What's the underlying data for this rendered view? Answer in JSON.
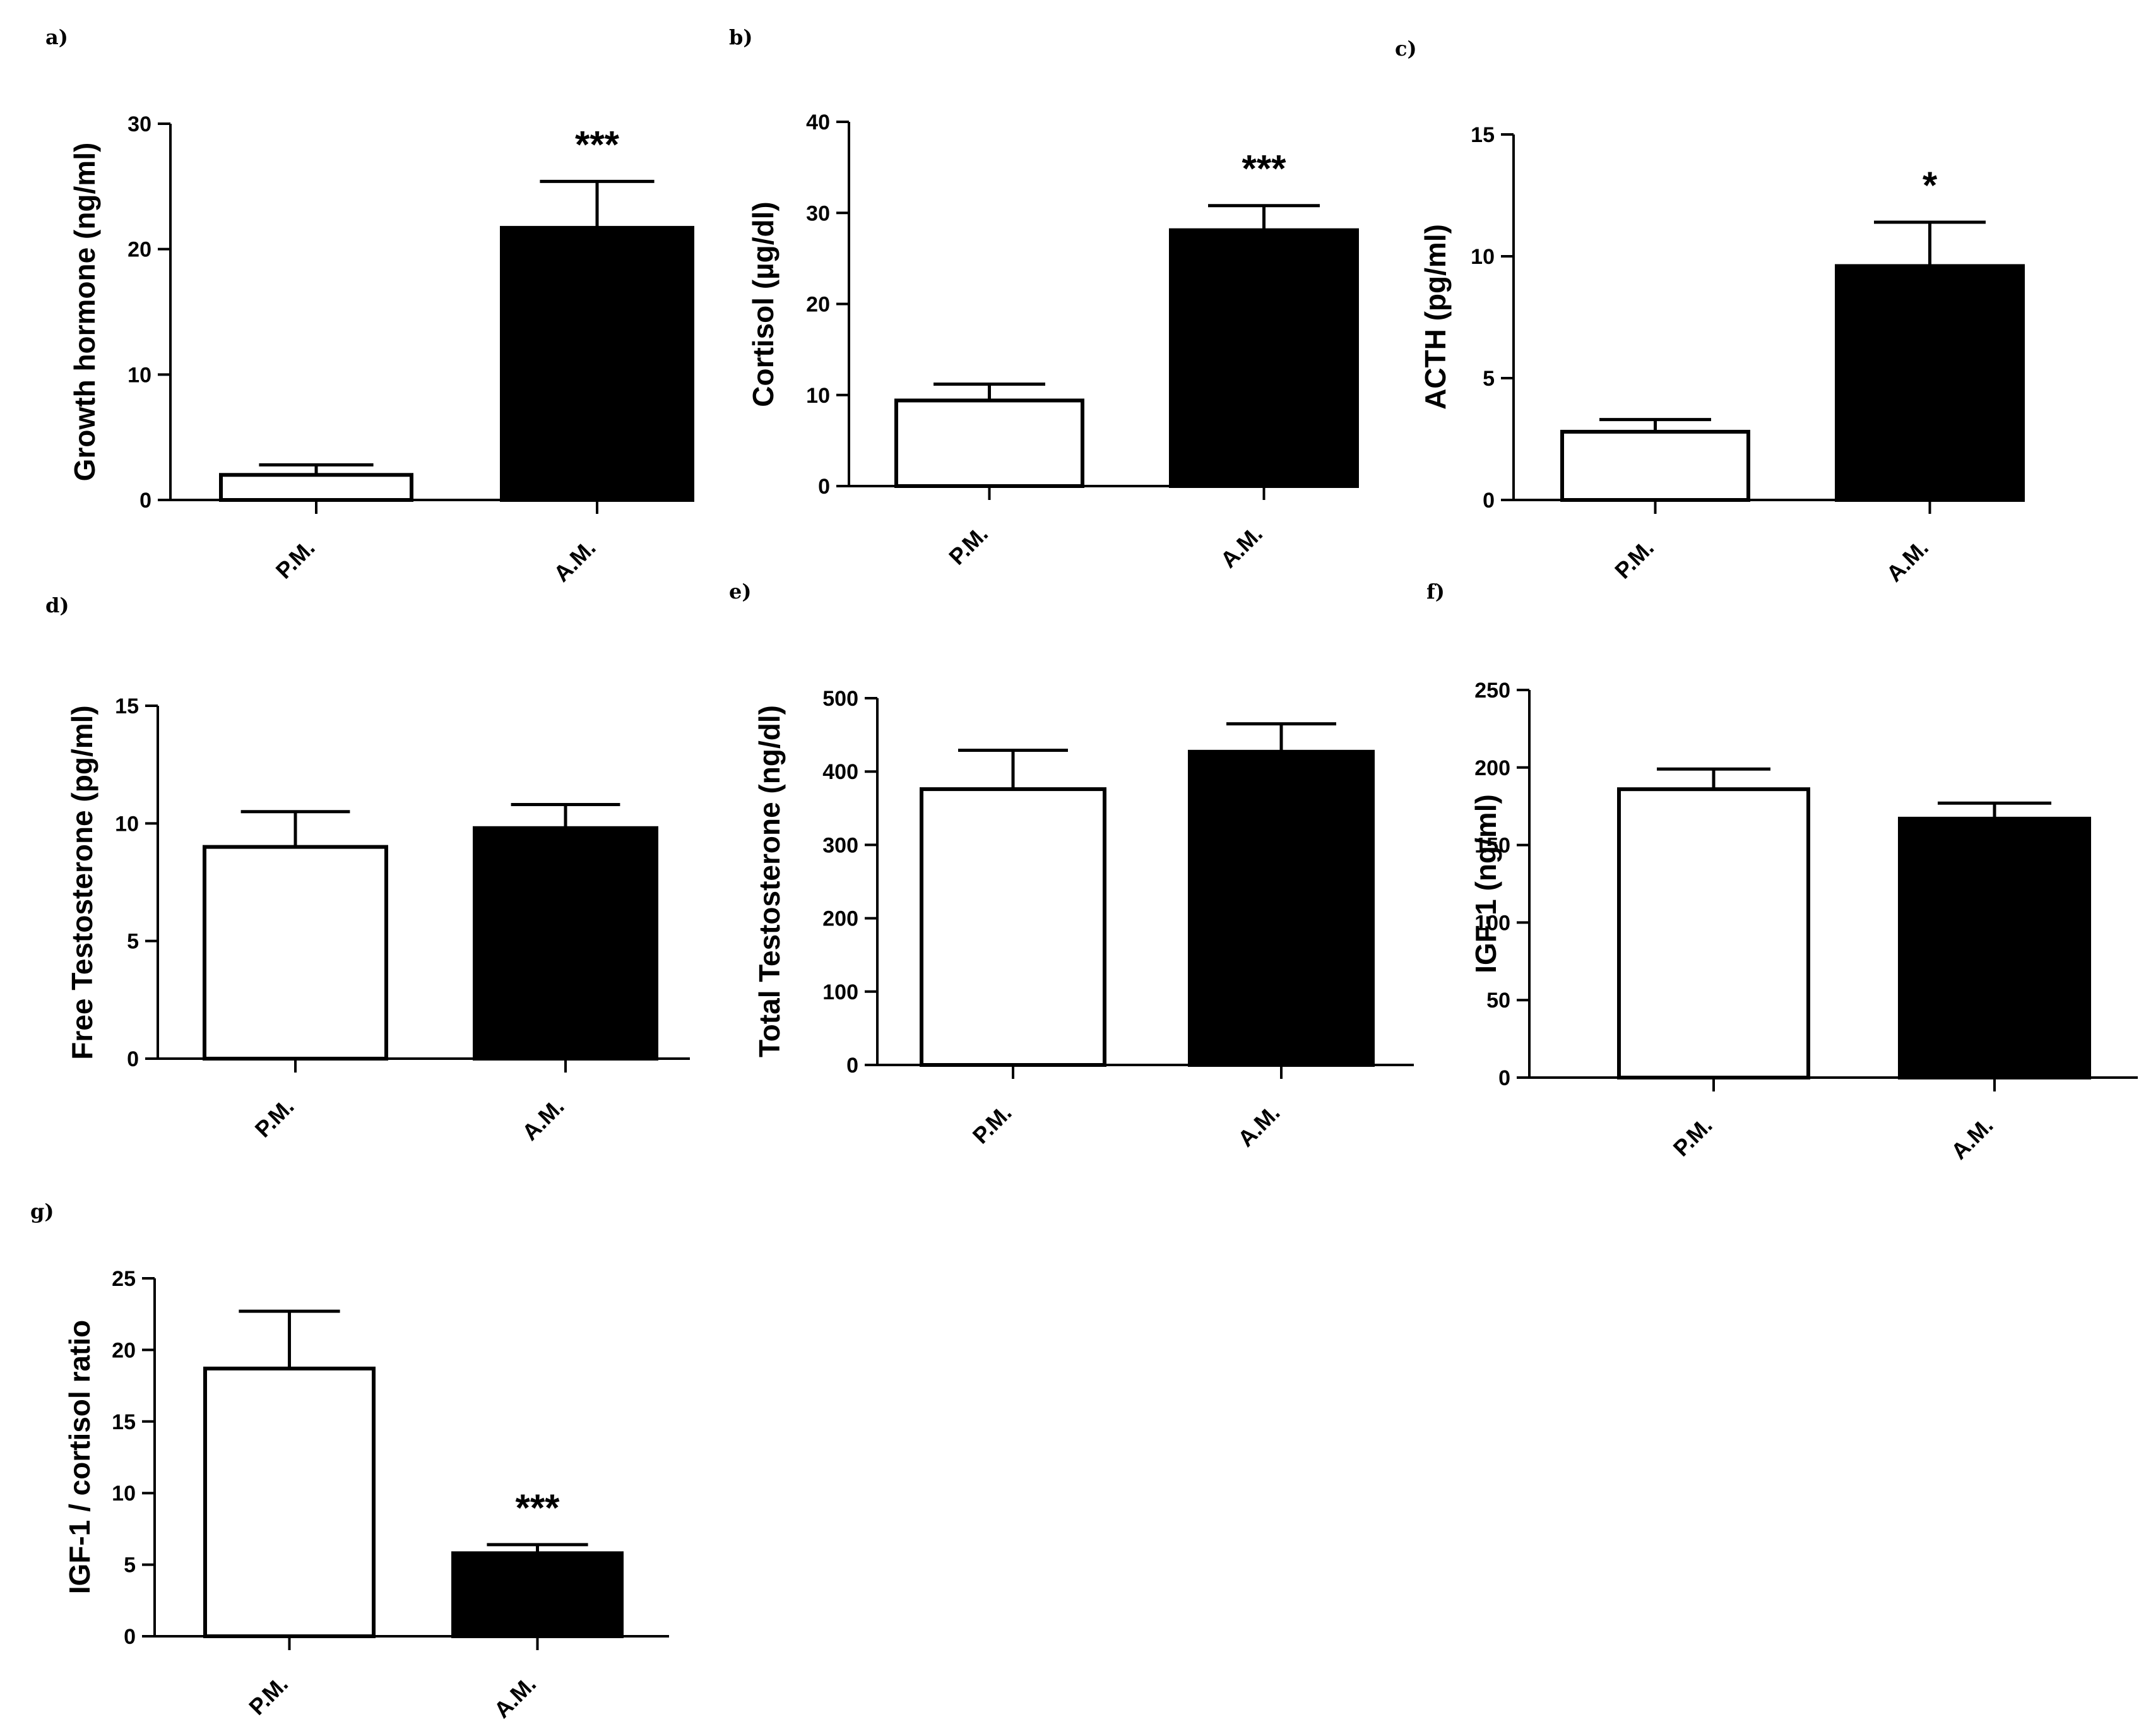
{
  "chart_data": [
    {
      "panel": "a)",
      "type": "bar",
      "categories": [
        "P.M.",
        "A.M."
      ],
      "values": [
        2,
        21.7
      ],
      "errors": [
        0.8,
        3.7
      ],
      "fills": [
        "#ffffff",
        "#000000"
      ],
      "significance": [
        "",
        "***"
      ],
      "ylabel": "Growth hormone (ng/ml)",
      "ylim": [
        0,
        30
      ],
      "yticks": [
        0,
        10,
        20,
        30
      ]
    },
    {
      "panel": "b)",
      "type": "bar",
      "categories": [
        "P.M.",
        "A.M."
      ],
      "values": [
        9.4,
        28.1
      ],
      "errors": [
        1.8,
        2.7
      ],
      "fills": [
        "#ffffff",
        "#000000"
      ],
      "significance": [
        "",
        "***"
      ],
      "ylabel": "Cortisol (µg/dl)",
      "ylim": [
        0,
        40
      ],
      "yticks": [
        0,
        10,
        20,
        30,
        40
      ]
    },
    {
      "panel": "c)",
      "type": "bar",
      "categories": [
        "P.M.",
        "A.M."
      ],
      "values": [
        2.8,
        9.6
      ],
      "errors": [
        0.5,
        1.8
      ],
      "fills": [
        "#ffffff",
        "#000000"
      ],
      "significance": [
        "",
        "*"
      ],
      "ylabel": "ACTH (pg/ml)",
      "ylim": [
        0,
        15
      ],
      "yticks": [
        0,
        5,
        10,
        15
      ]
    },
    {
      "panel": "d)",
      "type": "bar",
      "categories": [
        "P.M.",
        "A.M."
      ],
      "values": [
        9,
        9.8
      ],
      "errors": [
        1.5,
        1
      ],
      "fills": [
        "#ffffff",
        "#000000"
      ],
      "significance": [
        "",
        ""
      ],
      "ylabel": "Free Testosterone (pg/ml)",
      "ylim": [
        0,
        15
      ],
      "yticks": [
        0,
        5,
        10,
        15
      ]
    },
    {
      "panel": "e)",
      "type": "bar",
      "categories": [
        "P.M.",
        "A.M."
      ],
      "values": [
        376,
        427
      ],
      "errors": [
        53,
        38
      ],
      "fills": [
        "#ffffff",
        "#000000"
      ],
      "significance": [
        "",
        ""
      ],
      "ylabel": "Total Testosterone (ng/dl)",
      "ylim": [
        0,
        500
      ],
      "yticks": [
        0,
        100,
        200,
        300,
        400,
        500
      ]
    },
    {
      "panel": "f)",
      "type": "bar",
      "categories": [
        "P.M.",
        "A.M."
      ],
      "values": [
        186,
        167
      ],
      "errors": [
        13,
        10
      ],
      "fills": [
        "#ffffff",
        "#000000"
      ],
      "significance": [
        "",
        ""
      ],
      "ylabel": "IGF-1 (ng/ml)",
      "ylim": [
        0,
        250
      ],
      "yticks": [
        0,
        50,
        100,
        150,
        200,
        250
      ]
    },
    {
      "panel": "g)",
      "type": "bar",
      "categories": [
        "P.M.",
        "A.M."
      ],
      "values": [
        18.7,
        5.8
      ],
      "errors": [
        4,
        0.6
      ],
      "fills": [
        "#ffffff",
        "#000000"
      ],
      "significance": [
        "",
        "***"
      ],
      "ylabel": "IGF-1 / cortisol ratio",
      "ylim": [
        0,
        25
      ],
      "yticks": [
        0,
        5,
        10,
        15,
        20,
        25
      ]
    }
  ]
}
